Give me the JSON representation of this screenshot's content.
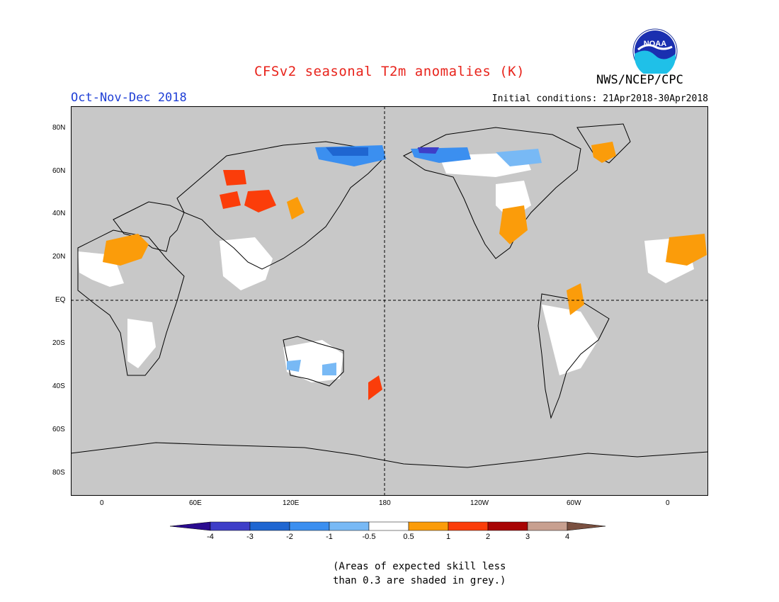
{
  "title": "CFSv2 seasonal T2m anomalies (K)",
  "organization": "NWS/NCEP/CPC",
  "logo_text": "NOAA",
  "season": "Oct-Nov-Dec 2018",
  "initial_conditions": "Initial conditions: 21Apr2018-30Apr2018",
  "map": {
    "background_color": "#c8c8c8",
    "lat_labels": [
      "80N",
      "60N",
      "40N",
      "20N",
      "EQ",
      "20S",
      "40S",
      "60S",
      "80S"
    ],
    "lon_labels": [
      "0",
      "60E",
      "120E",
      "180",
      "120W",
      "60W",
      "0"
    ]
  },
  "colorbar": {
    "labels": [
      "-4",
      "-3",
      "-2",
      "-1",
      "-0.5",
      "0.5",
      "1",
      "2",
      "3",
      "4"
    ],
    "colors": [
      "#2a0b8f",
      "#3e3ec8",
      "#1f66d1",
      "#3b8ff0",
      "#78b9f5",
      "#ffffff",
      "#fb9c0a",
      "#fb3d0a",
      "#a80505",
      "#c8a090",
      "#7a5040"
    ]
  },
  "note_lines": [
    "(Areas of expected skill less",
    "than 0.3 are shaded in grey.)"
  ]
}
